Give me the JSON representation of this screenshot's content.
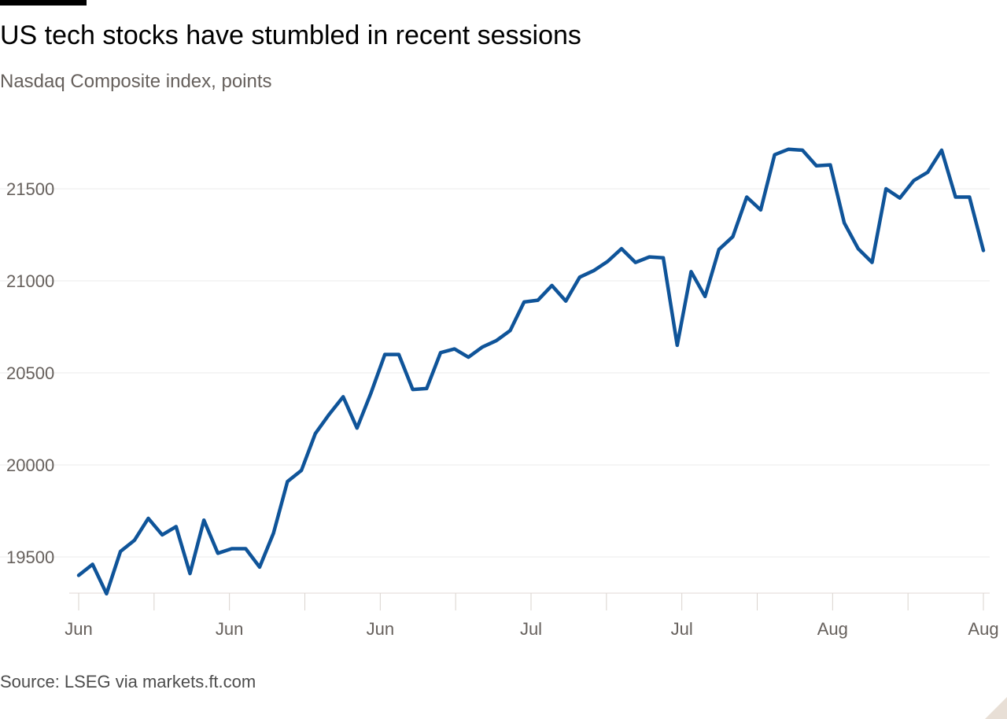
{
  "header": {
    "title": "US tech stocks have stumbled in recent sessions",
    "subtitle": "Nasdaq Composite index, points"
  },
  "footer": {
    "source": "Source: LSEG via markets.ft.com"
  },
  "colors": {
    "line": "#0f5499",
    "grid": "#ebebeb",
    "axis_text": "#66605c"
  },
  "chart_data": {
    "type": "line",
    "title": "US tech stocks have stumbled in recent sessions",
    "subtitle": "Nasdaq Composite index, points",
    "xlabel": "",
    "ylabel": "",
    "ylim": [
      19280,
      21800
    ],
    "yticks": [
      19500,
      20000,
      20500,
      21000,
      21500
    ],
    "grid": true,
    "legend": "none",
    "x_ticks": [
      "Jun",
      "Jun",
      "Jun",
      "Jul",
      "Jul",
      "Aug",
      "Aug"
    ],
    "series": [
      {
        "values": [
          19400,
          19460,
          19300,
          19530,
          19590,
          19710,
          19620,
          19665,
          19410,
          19700,
          19520,
          19545,
          19545,
          19445,
          19630,
          19910,
          19970,
          20170,
          20275,
          20370,
          20200,
          20390,
          20600,
          20600,
          20410,
          20415,
          20610,
          20630,
          20585,
          20640,
          20675,
          20730,
          20885,
          20895,
          20975,
          20890,
          21020,
          21055,
          21105,
          21175,
          21100,
          21130,
          21125,
          20650,
          21050,
          20915,
          21170,
          21240,
          21455,
          21385,
          21685,
          21715,
          21710,
          21625,
          21630,
          21315,
          21175,
          21100,
          21500,
          21450,
          21545,
          21590,
          21710,
          21455,
          21455,
          21165
        ]
      }
    ]
  }
}
